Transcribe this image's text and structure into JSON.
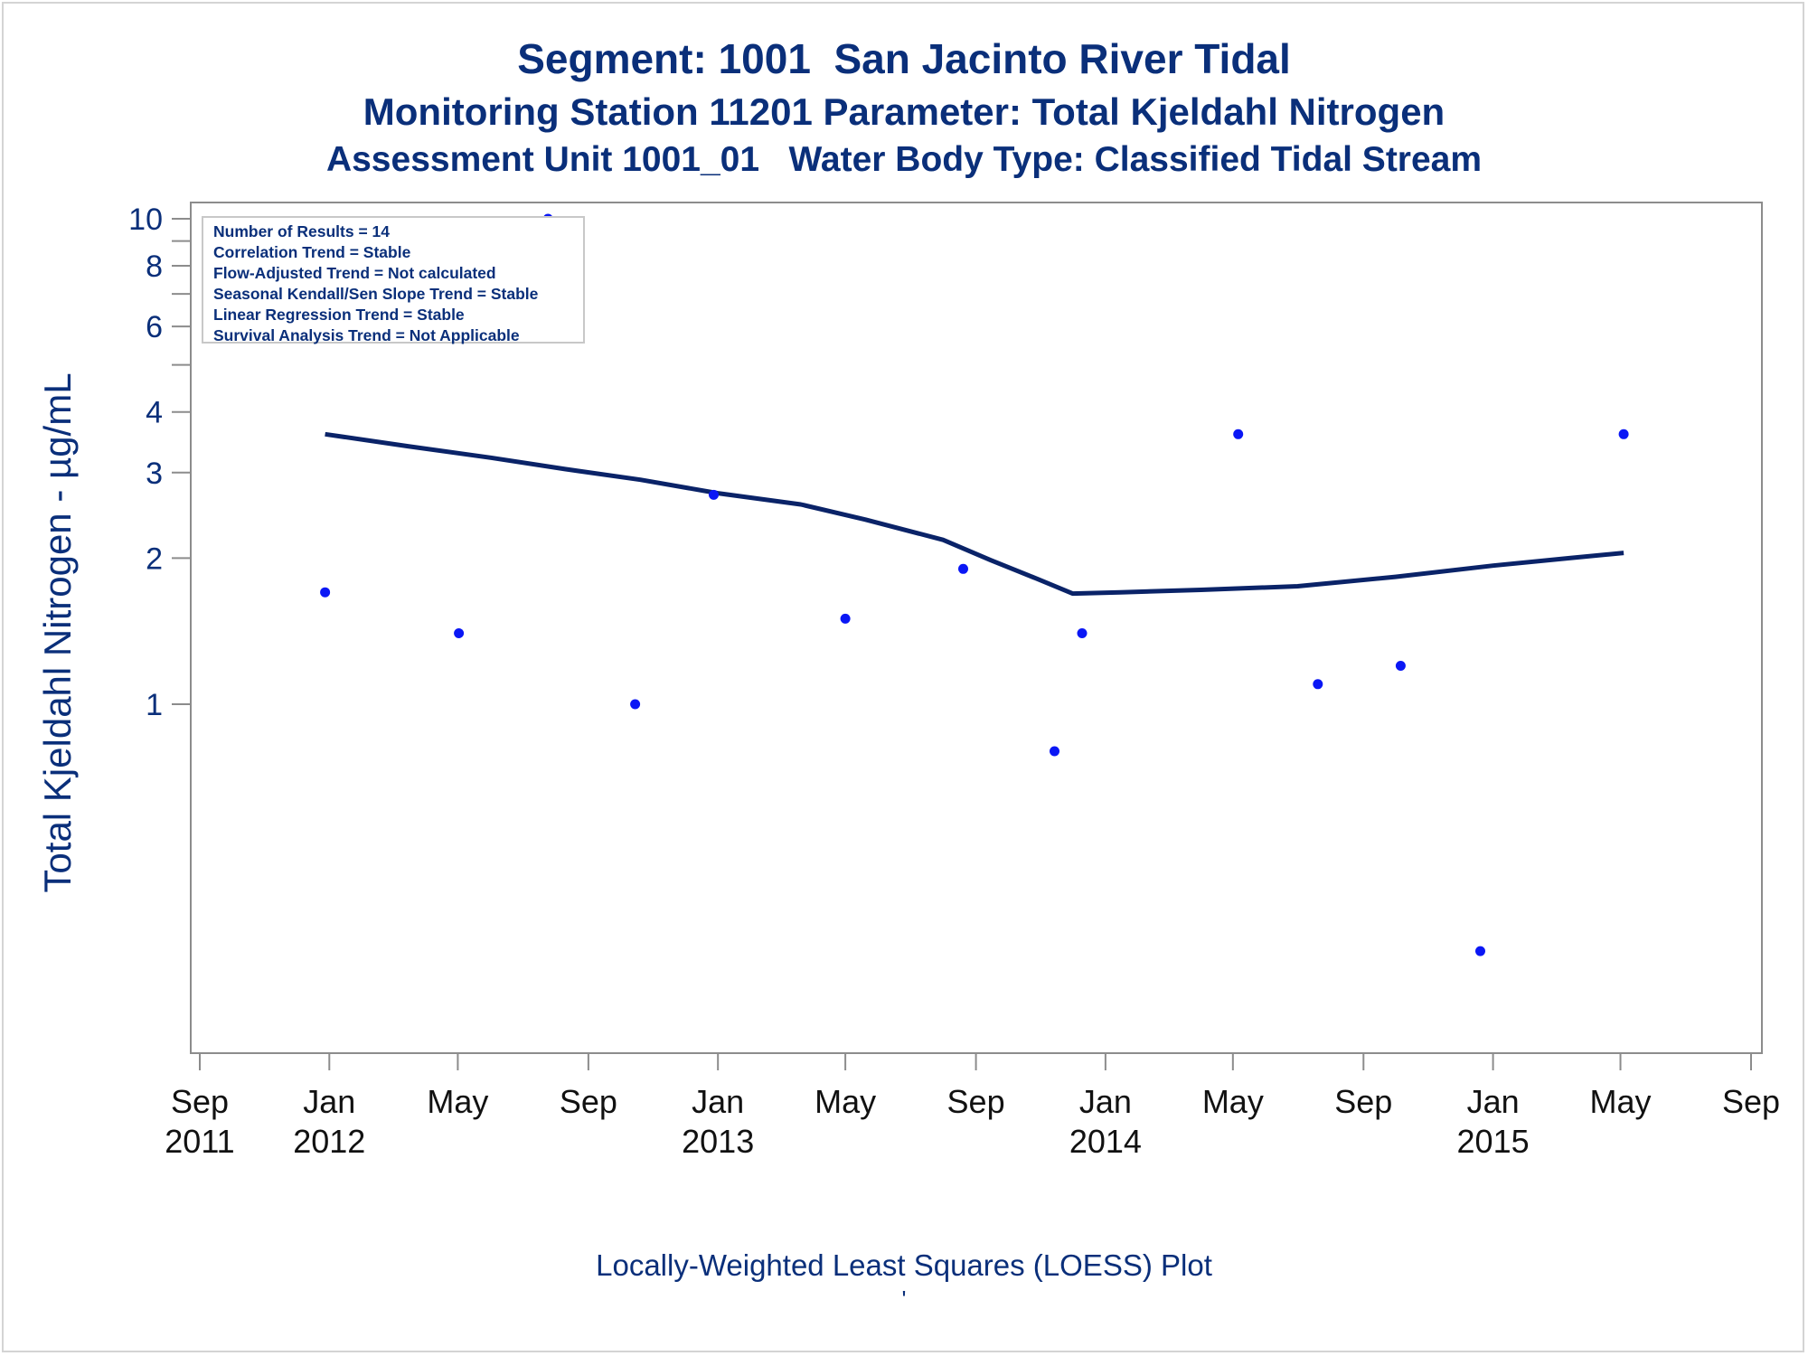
{
  "titles": {
    "line1": "Segment: 1001  San Jacinto River Tidal",
    "line2": "Monitoring Station 11201 Parameter: Total Kjeldahl Nitrogen",
    "line3": "Assessment Unit 1001_01   Water Body Type: Classified Tidal Stream"
  },
  "stats_box": {
    "lines": [
      "Number of Results = 14",
      "Correlation Trend = Stable",
      "Flow-Adjusted Trend = Not calculated",
      "Seasonal Kendall/Sen Slope Trend = Stable",
      "Linear Regression Trend = Stable",
      "Survival Analysis Trend = Not Applicable"
    ]
  },
  "footnotes": {
    "line1": "Locally-Weighted Least Squares (LOESS) Plot",
    "line2": "'"
  },
  "colors": {
    "text": "#0a2f7a",
    "points": "#0a17f5",
    "loess_line": "#0a2368",
    "axis": "#8c8c8c"
  },
  "chart_data": {
    "type": "scatter",
    "title": "Segment: 1001  San Jacinto River Tidal",
    "subtitle": "Monitoring Station 11201 Parameter: Total Kjeldahl Nitrogen",
    "xlabel": "",
    "ylabel": "Total Kjeldahl Nitrogen -  µg/mL",
    "y_scale": "log",
    "xlim": [
      "2011-09-01",
      "2015-09-01"
    ],
    "ylim": [
      0.3,
      10
    ],
    "grid": false,
    "x_ticks": [
      {
        "label": "Sep",
        "year": "2011",
        "date": "2011-09-01"
      },
      {
        "label": "Jan",
        "year": "2012",
        "date": "2012-01-01"
      },
      {
        "label": "May",
        "year": "",
        "date": "2012-05-01"
      },
      {
        "label": "Sep",
        "year": "",
        "date": "2012-09-01"
      },
      {
        "label": "Jan",
        "year": "2013",
        "date": "2013-01-01"
      },
      {
        "label": "May",
        "year": "",
        "date": "2013-05-01"
      },
      {
        "label": "Sep",
        "year": "",
        "date": "2013-09-01"
      },
      {
        "label": "Jan",
        "year": "2014",
        "date": "2014-01-01"
      },
      {
        "label": "May",
        "year": "",
        "date": "2014-05-01"
      },
      {
        "label": "Sep",
        "year": "",
        "date": "2014-09-01"
      },
      {
        "label": "Jan",
        "year": "2015",
        "date": "2015-01-01"
      },
      {
        "label": "May",
        "year": "",
        "date": "2015-05-01"
      },
      {
        "label": "Sep",
        "year": "",
        "date": "2015-09-01"
      }
    ],
    "y_ticks_labeled": [
      1,
      2,
      3,
      4,
      6,
      8,
      10
    ],
    "y_ticks_minor": [
      5,
      7,
      9
    ],
    "series": [
      {
        "type": "scatter",
        "points": [
          {
            "x": "2011-12-28",
            "y": 1.7
          },
          {
            "x": "2012-05-02",
            "y": 1.4
          },
          {
            "x": "2012-07-25",
            "y": 10
          },
          {
            "x": "2012-10-15",
            "y": 1.0
          },
          {
            "x": "2012-12-28",
            "y": 2.7
          },
          {
            "x": "2013-05-01",
            "y": 1.5
          },
          {
            "x": "2013-08-20",
            "y": 1.9
          },
          {
            "x": "2013-11-14",
            "y": 0.8
          },
          {
            "x": "2013-12-10",
            "y": 1.4
          },
          {
            "x": "2014-05-06",
            "y": 3.6
          },
          {
            "x": "2014-07-20",
            "y": 1.1
          },
          {
            "x": "2014-10-06",
            "y": 1.2
          },
          {
            "x": "2014-12-20",
            "y": 0.31
          },
          {
            "x": "2015-05-04",
            "y": 3.6
          }
        ]
      },
      {
        "type": "line",
        "points": [
          {
            "x": "2011-12-28",
            "y": 3.6
          },
          {
            "x": "2012-03-15",
            "y": 3.4
          },
          {
            "x": "2012-06-01",
            "y": 3.22
          },
          {
            "x": "2012-08-10",
            "y": 3.05
          },
          {
            "x": "2012-10-20",
            "y": 2.9
          },
          {
            "x": "2013-01-01",
            "y": 2.72
          },
          {
            "x": "2013-03-20",
            "y": 2.58
          },
          {
            "x": "2013-05-20",
            "y": 2.4
          },
          {
            "x": "2013-08-01",
            "y": 2.18
          },
          {
            "x": "2013-09-15",
            "y": 1.98
          },
          {
            "x": "2013-11-01",
            "y": 1.8
          },
          {
            "x": "2013-12-01",
            "y": 1.69
          },
          {
            "x": "2014-01-15",
            "y": 1.7
          },
          {
            "x": "2014-04-01",
            "y": 1.72
          },
          {
            "x": "2014-07-01",
            "y": 1.75
          },
          {
            "x": "2014-10-01",
            "y": 1.83
          },
          {
            "x": "2015-01-01",
            "y": 1.93
          },
          {
            "x": "2015-03-15",
            "y": 2.0
          },
          {
            "x": "2015-05-04",
            "y": 2.05
          }
        ]
      }
    ]
  }
}
